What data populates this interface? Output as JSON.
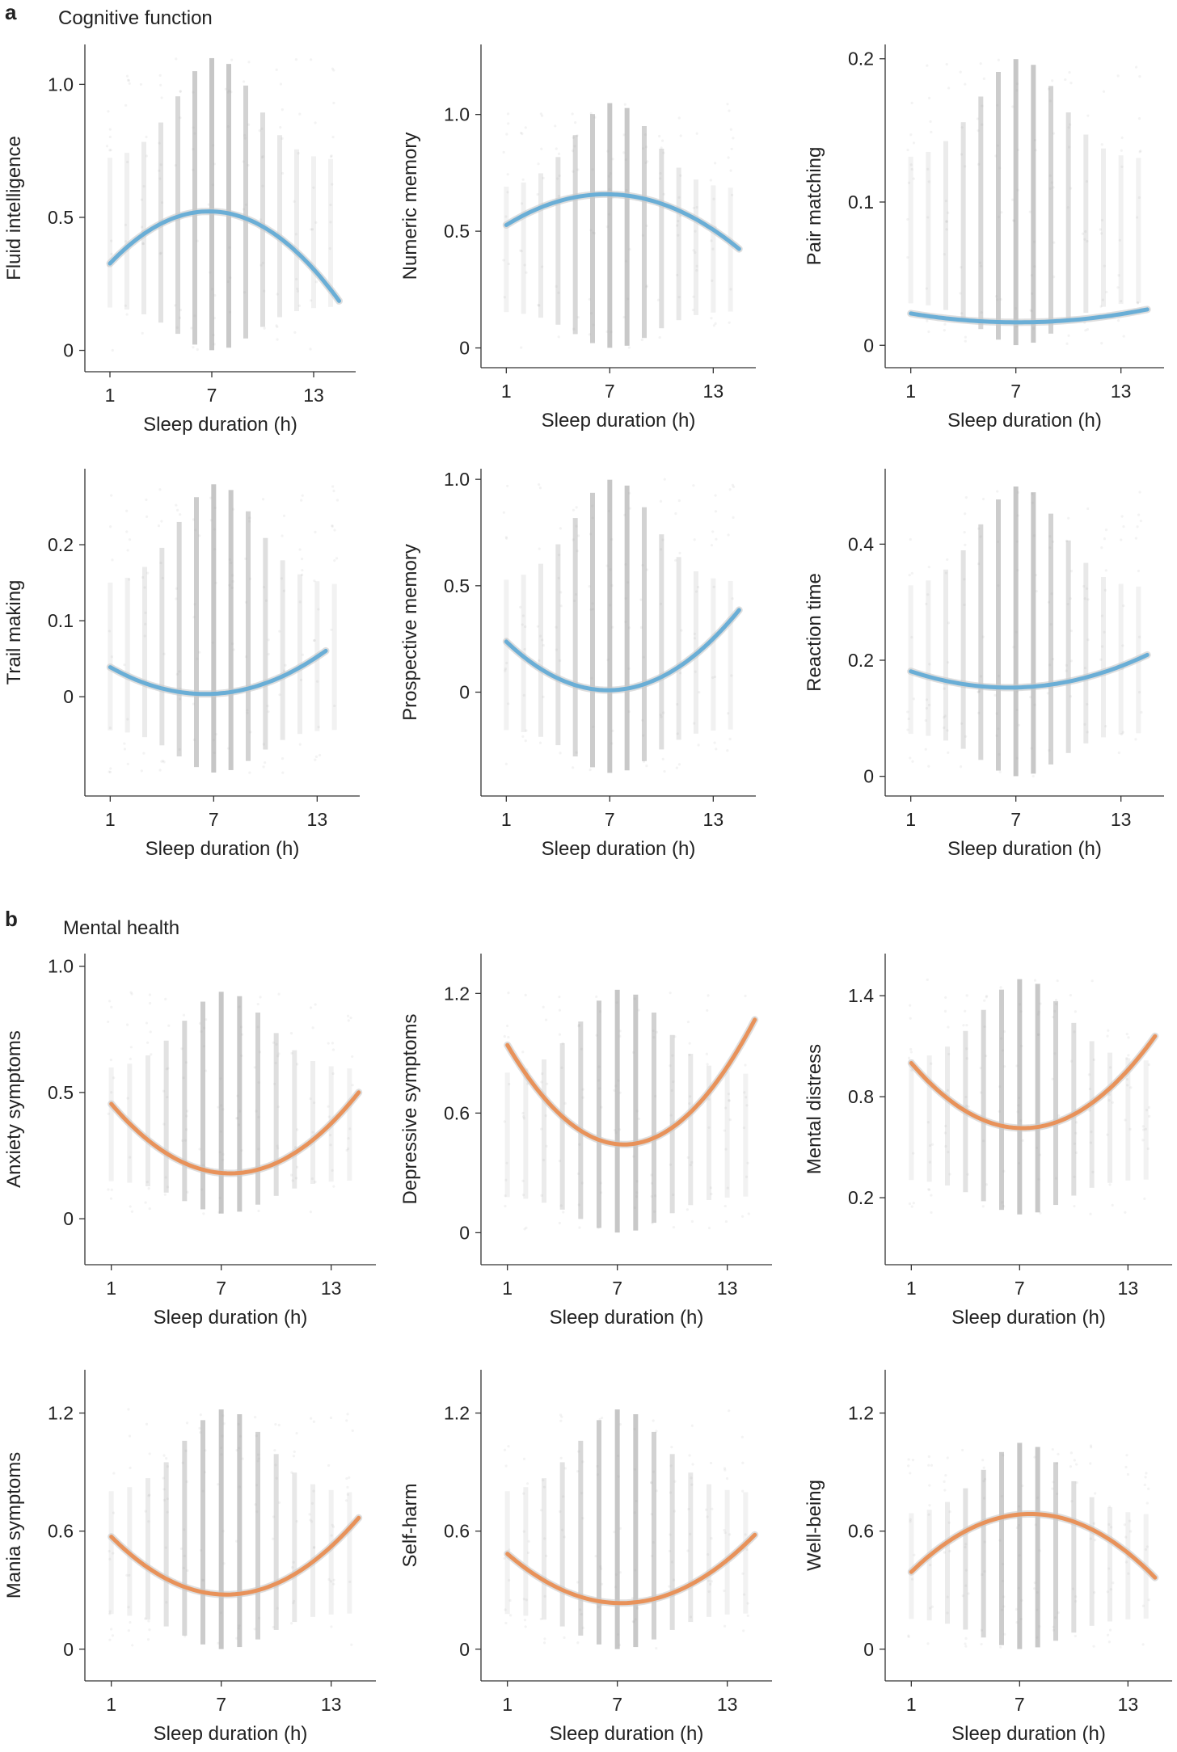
{
  "figure": {
    "panel_a": {
      "letter": "a",
      "title": "Cognitive function"
    },
    "panel_b": {
      "letter": "b",
      "title": "Mental health"
    },
    "colors": {
      "cognitive": "#6aaed6",
      "mental": "#e8925a",
      "scatter": "#9a9a9a",
      "axis": "#333333"
    }
  },
  "chart_data": [
    {
      "type": "scatter",
      "title": "",
      "ylabel": "Fluid intelligence",
      "xlabel": "Sleep duration (h)",
      "xticks": [
        1,
        7,
        13
      ],
      "xlim": [
        0,
        15
      ],
      "yticks": [
        0,
        0.5,
        1.0
      ],
      "ytick_labels": [
        "0",
        "0.5",
        "1.0"
      ],
      "ylim": [
        -0.05,
        1.15
      ],
      "scatter_range": [
        0,
        1.1
      ],
      "scatter_x_range": [
        1,
        14
      ],
      "fit": {
        "type": "quadratic",
        "color": "cognitive",
        "x": [
          1,
          4,
          7,
          10,
          13,
          14.5
        ],
        "y": [
          0.33,
          0.47,
          0.52,
          0.47,
          0.31,
          0.18
        ]
      }
    },
    {
      "type": "scatter",
      "title": "",
      "ylabel": "Numeric memory",
      "xlabel": "Sleep duration (h)",
      "xticks": [
        1,
        7,
        13
      ],
      "xlim": [
        0,
        15
      ],
      "yticks": [
        0,
        0.5,
        1.0
      ],
      "ytick_labels": [
        "0",
        "0.5",
        "1.0"
      ],
      "ylim": [
        -0.05,
        1.3
      ],
      "scatter_range": [
        0,
        1.05
      ],
      "scatter_x_range": [
        1,
        14
      ],
      "fit": {
        "type": "quadratic",
        "color": "cognitive",
        "x": [
          1,
          4,
          7,
          10,
          13,
          14.5
        ],
        "y": [
          0.53,
          0.62,
          0.66,
          0.62,
          0.51,
          0.42
        ]
      }
    },
    {
      "type": "scatter",
      "title": "",
      "ylabel": "Pair matching",
      "xlabel": "Sleep duration (h)",
      "xticks": [
        1,
        7,
        13
      ],
      "xlim": [
        0,
        15
      ],
      "yticks": [
        0,
        0.1,
        0.2
      ],
      "ytick_labels": [
        "0",
        "0.1",
        "0.2"
      ],
      "ylim": [
        -0.01,
        0.21
      ],
      "scatter_range": [
        0,
        0.2
      ],
      "scatter_x_range": [
        1,
        14
      ],
      "fit": {
        "type": "quadratic",
        "color": "cognitive",
        "x": [
          1,
          4,
          7,
          10,
          13,
          14.5
        ],
        "y": [
          0.022,
          0.018,
          0.016,
          0.017,
          0.022,
          0.025
        ]
      }
    },
    {
      "type": "scatter",
      "title": "",
      "ylabel": "Trail making",
      "xlabel": "Sleep duration (h)",
      "xticks": [
        1,
        7,
        13
      ],
      "xlim": [
        0,
        15
      ],
      "yticks": [
        0,
        0.1,
        0.2
      ],
      "ytick_labels": [
        "0",
        "0.1",
        "0.2"
      ],
      "ylim": [
        -0.12,
        0.3
      ],
      "scatter_range": [
        -0.1,
        0.28
      ],
      "scatter_x_range": [
        1,
        14
      ],
      "fit": {
        "type": "quadratic",
        "color": "cognitive",
        "x": [
          1,
          4,
          6.5,
          9,
          12,
          13.5
        ],
        "y": [
          0.038,
          0.013,
          0.003,
          0.009,
          0.04,
          0.06
        ]
      }
    },
    {
      "type": "scatter",
      "title": "",
      "ylabel": "Prospective memory",
      "xlabel": "Sleep duration (h)",
      "xticks": [
        1,
        7,
        13
      ],
      "xlim": [
        0,
        15
      ],
      "yticks": [
        0,
        0.5,
        1.0
      ],
      "ytick_labels": [
        "0",
        "0.5",
        "1.0"
      ],
      "ylim": [
        -0.45,
        1.05
      ],
      "scatter_range": [
        -0.38,
        1.0
      ],
      "scatter_x_range": [
        1,
        14
      ],
      "fit": {
        "type": "quadratic",
        "color": "cognitive",
        "x": [
          1,
          4,
          7,
          10,
          13,
          14.5
        ],
        "y": [
          0.24,
          0.06,
          0.01,
          0.07,
          0.26,
          0.38
        ]
      }
    },
    {
      "type": "scatter",
      "title": "",
      "ylabel": "Reaction time",
      "xlabel": "Sleep duration (h)",
      "xticks": [
        1,
        7,
        13
      ],
      "xlim": [
        0,
        15
      ],
      "yticks": [
        0,
        0.2,
        0.4
      ],
      "ytick_labels": [
        "0",
        "0.2",
        "0.4"
      ],
      "ylim": [
        -0.02,
        0.53
      ],
      "scatter_range": [
        0,
        0.5
      ],
      "scatter_x_range": [
        1,
        14
      ],
      "fit": {
        "type": "quadratic",
        "color": "cognitive",
        "x": [
          1,
          4,
          7,
          10,
          13,
          14.5
        ],
        "y": [
          0.18,
          0.16,
          0.155,
          0.16,
          0.19,
          0.21
        ]
      }
    },
    {
      "type": "scatter",
      "title": "",
      "ylabel": "Anxiety symptoms",
      "xlabel": "Sleep duration (h)",
      "xticks": [
        1,
        7,
        13
      ],
      "xlim": [
        0,
        15
      ],
      "yticks": [
        0,
        0.5,
        1.0
      ],
      "ytick_labels": [
        "0",
        "0.5",
        "1.0"
      ],
      "ylim": [
        -0.15,
        1.05
      ],
      "scatter_range": [
        0.02,
        0.9
      ],
      "scatter_x_range": [
        1,
        14
      ],
      "fit": {
        "type": "quadratic",
        "color": "mental",
        "x": [
          1,
          4,
          7.5,
          10.5,
          13,
          14.5
        ],
        "y": [
          0.46,
          0.25,
          0.18,
          0.24,
          0.39,
          0.49
        ]
      }
    },
    {
      "type": "scatter",
      "title": "",
      "ylabel": "Depressive symptoms",
      "xlabel": "Sleep duration (h)",
      "xticks": [
        1,
        7,
        13
      ],
      "xlim": [
        0,
        15
      ],
      "yticks": [
        0,
        0.6,
        1.2
      ],
      "ytick_labels": [
        "0",
        "0.6",
        "1.2"
      ],
      "ylim": [
        -0.12,
        1.4
      ],
      "scatter_range": [
        0,
        1.22
      ],
      "scatter_x_range": [
        1,
        14
      ],
      "fit": {
        "type": "quadratic",
        "color": "mental",
        "x": [
          1,
          4,
          7.5,
          10.5,
          13,
          14.5
        ],
        "y": [
          0.95,
          0.57,
          0.43,
          0.58,
          0.85,
          1.05
        ]
      }
    },
    {
      "type": "scatter",
      "title": "",
      "ylabel": "Mental distress",
      "xlabel": "Sleep duration (h)",
      "xticks": [
        1,
        7,
        13
      ],
      "xlim": [
        0,
        15
      ],
      "yticks": [
        0.2,
        0.8,
        1.4
      ],
      "ytick_labels": [
        "0.2",
        "0.8",
        "1.4"
      ],
      "ylim": [
        -0.15,
        1.65
      ],
      "scatter_range": [
        0.1,
        1.5
      ],
      "scatter_x_range": [
        1,
        14
      ],
      "fit": {
        "type": "quadratic",
        "color": "mental",
        "x": [
          1,
          4,
          7,
          10,
          13,
          14.5
        ],
        "y": [
          1.0,
          0.72,
          0.6,
          0.7,
          0.97,
          1.15
        ]
      }
    },
    {
      "type": "scatter",
      "title": "",
      "ylabel": "Mania symptoms",
      "xlabel": "Sleep duration (h)",
      "xticks": [
        1,
        7,
        13
      ],
      "xlim": [
        0,
        15
      ],
      "yticks": [
        0,
        0.6,
        1.2
      ],
      "ytick_labels": [
        "0",
        "0.6",
        "1.2"
      ],
      "ylim": [
        -0.12,
        1.42
      ],
      "scatter_range": [
        0,
        1.22
      ],
      "scatter_x_range": [
        1,
        14
      ],
      "fit": {
        "type": "quadratic",
        "color": "mental",
        "x": [
          1,
          4,
          7,
          10,
          13,
          14.5
        ],
        "y": [
          0.57,
          0.36,
          0.28,
          0.33,
          0.52,
          0.67
        ]
      }
    },
    {
      "type": "scatter",
      "title": "",
      "ylabel": "Self-harm",
      "xlabel": "Sleep duration (h)",
      "xticks": [
        1,
        7,
        13
      ],
      "xlim": [
        0,
        15
      ],
      "yticks": [
        0,
        0.6,
        1.2
      ],
      "ytick_labels": [
        "0",
        "0.6",
        "1.2"
      ],
      "ylim": [
        -0.12,
        1.42
      ],
      "scatter_range": [
        0,
        1.22
      ],
      "scatter_x_range": [
        1,
        14
      ],
      "fit": {
        "type": "quadratic",
        "color": "mental",
        "x": [
          1,
          4,
          7.5,
          10.5,
          13,
          14.5
        ],
        "y": [
          0.49,
          0.29,
          0.24,
          0.3,
          0.47,
          0.57
        ]
      }
    },
    {
      "type": "scatter",
      "title": "",
      "ylabel": "Well-being",
      "xlabel": "Sleep duration (h)",
      "xticks": [
        1,
        7,
        13
      ],
      "xlim": [
        0,
        15
      ],
      "yticks": [
        0,
        0.6,
        1.2
      ],
      "ytick_labels": [
        "0",
        "0.6",
        "1.2"
      ],
      "ylim": [
        -0.12,
        1.42
      ],
      "scatter_range": [
        0,
        1.05
      ],
      "scatter_x_range": [
        1,
        14
      ],
      "fit": {
        "type": "quadratic",
        "color": "mental",
        "x": [
          1,
          4,
          8,
          11,
          13,
          14.5
        ],
        "y": [
          0.39,
          0.6,
          0.7,
          0.6,
          0.47,
          0.38
        ]
      }
    }
  ]
}
